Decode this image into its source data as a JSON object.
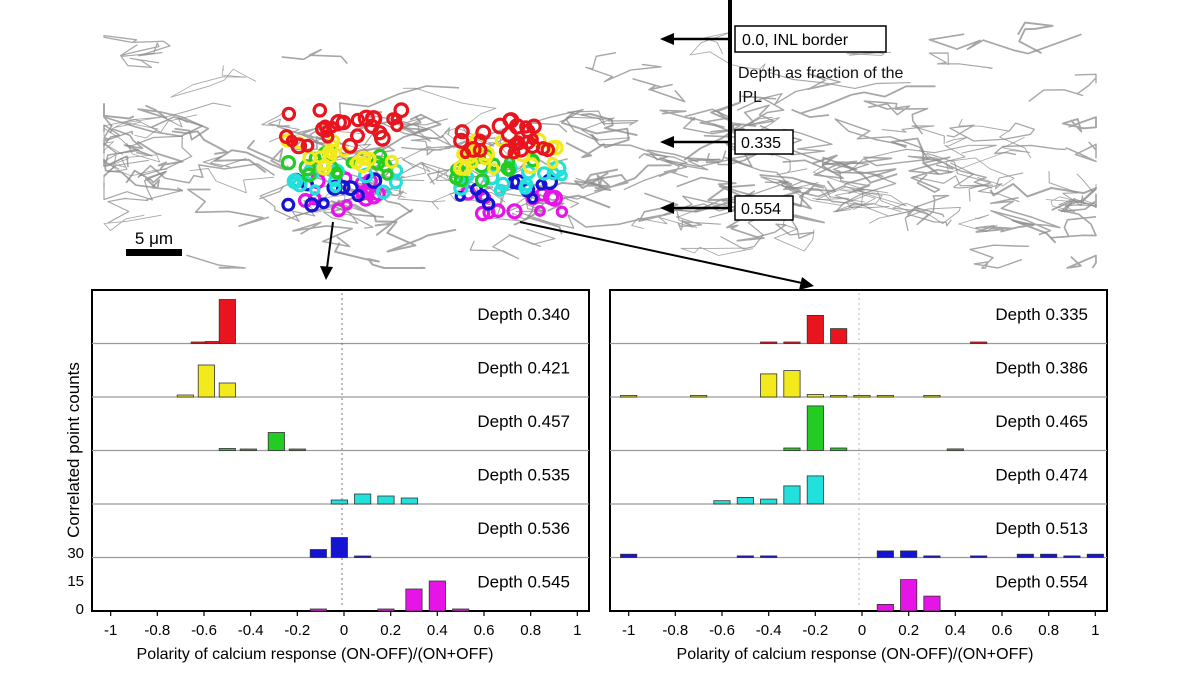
{
  "figure": {
    "scale_bar_label": "5 μm",
    "depth_caption": "Depth as fraction of the IPL",
    "depth_markers": [
      {
        "label": "0.0, INL border"
      },
      {
        "label": "0.335"
      },
      {
        "label": "0.554"
      }
    ]
  },
  "chart_data": [
    {
      "type": "bar",
      "title": "",
      "xlabel": "Polarity of calcium response (ON-OFF)/(ON+OFF)",
      "ylabel": "Correlated point counts",
      "xlim": [
        -1.08,
        1.05
      ],
      "yticks": [
        "0",
        "15",
        "30"
      ],
      "ymax": 30,
      "xticks": [
        "-1",
        "-0.8",
        "-0.6",
        "-0.4",
        "-0.2",
        "0",
        "0.2",
        "0.4",
        "0.6",
        "0.8",
        "1"
      ],
      "bin_width": 0.07,
      "series": [
        {
          "name": "Depth 0.340",
          "label": "Depth 0.340",
          "color": "#e8141e",
          "bins": [
            [
              -0.62,
              0.1
            ],
            [
              -0.56,
              1
            ],
            [
              -0.5,
              22
            ]
          ]
        },
        {
          "name": "Depth 0.421",
          "label": "Depth 0.421",
          "color": "#f2ea1c",
          "bins": [
            [
              -0.68,
              1
            ],
            [
              -0.59,
              16
            ],
            [
              -0.5,
              7
            ]
          ]
        },
        {
          "name": "Depth 0.457",
          "label": "Depth 0.457",
          "color": "#22cc22",
          "bins": [
            [
              -0.5,
              1
            ],
            [
              -0.41,
              0.1
            ],
            [
              -0.29,
              9
            ],
            [
              -0.2,
              0.5
            ]
          ]
        },
        {
          "name": "Depth 0.535",
          "label": "Depth 0.535",
          "color": "#22e0dc",
          "bins": [
            [
              -0.02,
              2
            ],
            [
              0.08,
              5
            ],
            [
              0.18,
              4
            ],
            [
              0.28,
              3
            ]
          ]
        },
        {
          "name": "Depth 0.536",
          "label": "Depth 0.536",
          "color": "#1414d2",
          "bins": [
            [
              -0.11,
              4
            ],
            [
              -0.02,
              10
            ],
            [
              0.08,
              0.5
            ]
          ]
        },
        {
          "name": "Depth 0.545",
          "label": "Depth 0.545",
          "color": "#e614e6",
          "bins": [
            [
              -0.11,
              1
            ],
            [
              0.18,
              1
            ],
            [
              0.3,
              11
            ],
            [
              0.4,
              15
            ],
            [
              0.5,
              1
            ]
          ]
        }
      ]
    },
    {
      "type": "bar",
      "title": "",
      "xlabel": "Polarity of calcium response (ON-OFF)/(ON+OFF)",
      "ylabel": "",
      "xlim": [
        -1.08,
        1.05
      ],
      "xticks": [
        "-1",
        "-0.8",
        "-0.6",
        "-0.4",
        "-0.2",
        "0",
        "0.2",
        "0.4",
        "0.6",
        "0.8",
        "1"
      ],
      "bin_width": 0.07,
      "series": [
        {
          "name": "Depth 0.335",
          "label": "Depth 0.335",
          "color": "#e8141e",
          "bins": [
            [
              -0.4,
              0.5
            ],
            [
              -0.3,
              0.5
            ],
            [
              -0.2,
              17
            ],
            [
              -0.1,
              9
            ],
            [
              0.5,
              0.5
            ]
          ]
        },
        {
          "name": "Depth 0.386",
          "label": "Depth 0.386",
          "color": "#f2ea1c",
          "bins": [
            [
              -1.0,
              1
            ],
            [
              -0.7,
              1
            ],
            [
              -0.4,
              14
            ],
            [
              -0.3,
              16
            ],
            [
              -0.2,
              1.5
            ],
            [
              -0.1,
              1
            ],
            [
              0.0,
              1
            ],
            [
              0.1,
              1
            ],
            [
              0.3,
              1
            ]
          ]
        },
        {
          "name": "Depth 0.465",
          "label": "Depth 0.465",
          "color": "#22cc22",
          "bins": [
            [
              -0.3,
              1.5
            ],
            [
              -0.2,
              27
            ],
            [
              -0.1,
              1.5
            ],
            [
              0.4,
              1
            ]
          ]
        },
        {
          "name": "Depth 0.474",
          "label": "Depth 0.474",
          "color": "#22e0dc",
          "bins": [
            [
              -0.6,
              2
            ],
            [
              -0.5,
              4
            ],
            [
              -0.4,
              3
            ],
            [
              -0.3,
              11
            ],
            [
              -0.2,
              17
            ]
          ]
        },
        {
          "name": "Depth 0.513",
          "label": "Depth 0.513",
          "color": "#1414d2",
          "bins": [
            [
              -1.0,
              2
            ],
            [
              -0.5,
              1
            ],
            [
              -0.4,
              1
            ],
            [
              0.1,
              4
            ],
            [
              0.2,
              4
            ],
            [
              0.3,
              1
            ],
            [
              0.5,
              1
            ],
            [
              0.7,
              2
            ],
            [
              0.8,
              2
            ],
            [
              0.9,
              1
            ],
            [
              1.0,
              2
            ]
          ]
        },
        {
          "name": "Depth 0.554",
          "label": "Depth 0.554",
          "color": "#e614e6",
          "bins": [
            [
              0.1,
              4
            ],
            [
              0.2,
              19
            ],
            [
              0.3,
              9
            ]
          ]
        }
      ]
    }
  ]
}
